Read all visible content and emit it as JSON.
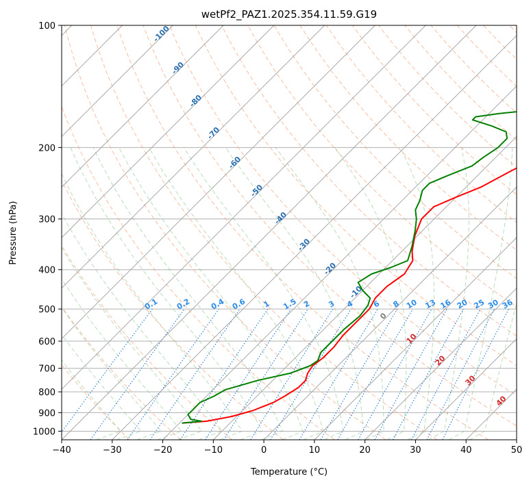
{
  "chart_data": {
    "type": "skewt",
    "title": "wetPf2_PAZ1.2025.354.11.59.G19",
    "xlabel": "Temperature (°C)",
    "ylabel": "Pressure (hPa)",
    "xlim": [
      -40,
      50
    ],
    "ylim": [
      1050,
      100
    ],
    "skew_deg": 45,
    "x_ticks": [
      {
        "value": -40,
        "label": "−40"
      },
      {
        "value": -30,
        "label": "−30"
      },
      {
        "value": -20,
        "label": "−20"
      },
      {
        "value": -10,
        "label": "−10"
      },
      {
        "value": 0,
        "label": "0"
      },
      {
        "value": 10,
        "label": "10"
      },
      {
        "value": 20,
        "label": "20"
      },
      {
        "value": 30,
        "label": "30"
      },
      {
        "value": 40,
        "label": "40"
      },
      {
        "value": 50,
        "label": "50"
      }
    ],
    "y_ticks": [
      {
        "value": 100,
        "label": "100"
      },
      {
        "value": 200,
        "label": "200"
      },
      {
        "value": 300,
        "label": "300"
      },
      {
        "value": 400,
        "label": "400"
      },
      {
        "value": 500,
        "label": "500"
      },
      {
        "value": 600,
        "label": "600"
      },
      {
        "value": 700,
        "label": "700"
      },
      {
        "value": 800,
        "label": "800"
      },
      {
        "value": 900,
        "label": "900"
      },
      {
        "value": 1000,
        "label": "1000"
      }
    ],
    "isotherm_labels": [
      {
        "t": -100,
        "label": "-100"
      },
      {
        "t": -90,
        "label": "-90"
      },
      {
        "t": -80,
        "label": "-80"
      },
      {
        "t": -70,
        "label": "-70"
      },
      {
        "t": -60,
        "label": "-60"
      },
      {
        "t": -50,
        "label": "-50"
      },
      {
        "t": -40,
        "label": "-40"
      },
      {
        "t": -30,
        "label": "-30"
      },
      {
        "t": -20,
        "label": "-20"
      },
      {
        "t": -10,
        "label": "-10"
      },
      {
        "t": 0,
        "label": "0"
      },
      {
        "t": 10,
        "label": "10"
      },
      {
        "t": 20,
        "label": "20"
      },
      {
        "t": 30,
        "label": "30"
      },
      {
        "t": 40,
        "label": "40"
      }
    ],
    "mixing_ratio_labels": [
      "0.1",
      "0.2",
      "0.4",
      "0.6",
      "1",
      "1.5",
      "2",
      "3",
      "4",
      "6",
      "8",
      "10",
      "13",
      "16",
      "20",
      "25",
      "30",
      "36"
    ],
    "series": [
      {
        "name": "Temperature",
        "color": "#ff0000",
        "points": [
          {
            "p": 955,
            "t": -19.5
          },
          {
            "p": 945,
            "t": -15
          },
          {
            "p": 920,
            "t": -11
          },
          {
            "p": 890,
            "t": -8
          },
          {
            "p": 850,
            "t": -5.5
          },
          {
            "p": 820,
            "t": -4.5
          },
          {
            "p": 780,
            "t": -3.5
          },
          {
            "p": 750,
            "t": -3.5
          },
          {
            "p": 720,
            "t": -4.5
          },
          {
            "p": 690,
            "t": -5
          },
          {
            "p": 660,
            "t": -4.5
          },
          {
            "p": 620,
            "t": -4.5
          },
          {
            "p": 580,
            "t": -5
          },
          {
            "p": 540,
            "t": -5
          },
          {
            "p": 500,
            "t": -5
          },
          {
            "p": 470,
            "t": -6
          },
          {
            "p": 440,
            "t": -6
          },
          {
            "p": 410,
            "t": -5
          },
          {
            "p": 380,
            "t": -6
          },
          {
            "p": 360,
            "t": -8
          },
          {
            "p": 330,
            "t": -10.5
          },
          {
            "p": 300,
            "t": -12.5
          },
          {
            "p": 280,
            "t": -12.5
          },
          {
            "p": 265,
            "t": -10
          },
          {
            "p": 250,
            "t": -7
          },
          {
            "p": 230,
            "t": -4.5
          },
          {
            "p": 210,
            "t": -1.5
          },
          {
            "p": 195,
            "t": 1
          },
          {
            "p": 180,
            "t": 2.5
          },
          {
            "p": 170,
            "t": 3.5
          },
          {
            "p": 160,
            "t": 4
          },
          {
            "p": 150,
            "t": 5
          },
          {
            "p": 140,
            "t": 8
          },
          {
            "p": 125,
            "t": 12
          },
          {
            "p": 110,
            "t": 15
          },
          {
            "p": 100,
            "t": 16
          }
        ]
      },
      {
        "name": "Dewpoint",
        "color": "#008000",
        "points": [
          {
            "p": 955,
            "t": -19.5
          },
          {
            "p": 945,
            "t": -16
          },
          {
            "p": 935,
            "t": -18.5
          },
          {
            "p": 910,
            "t": -20
          },
          {
            "p": 880,
            "t": -20
          },
          {
            "p": 850,
            "t": -20
          },
          {
            "p": 820,
            "t": -18.5
          },
          {
            "p": 790,
            "t": -17.5
          },
          {
            "p": 750,
            "t": -13
          },
          {
            "p": 720,
            "t": -8
          },
          {
            "p": 690,
            "t": -5.5
          },
          {
            "p": 670,
            "t": -5
          },
          {
            "p": 640,
            "t": -6
          },
          {
            "p": 600,
            "t": -6
          },
          {
            "p": 560,
            "t": -6
          },
          {
            "p": 520,
            "t": -5.5
          },
          {
            "p": 490,
            "t": -6
          },
          {
            "p": 470,
            "t": -7
          },
          {
            "p": 450,
            "t": -10
          },
          {
            "p": 430,
            "t": -12.5
          },
          {
            "p": 410,
            "t": -11.5
          },
          {
            "p": 395,
            "t": -9
          },
          {
            "p": 380,
            "t": -7
          },
          {
            "p": 350,
            "t": -9
          },
          {
            "p": 320,
            "t": -11.5
          },
          {
            "p": 300,
            "t": -13.5
          },
          {
            "p": 285,
            "t": -15.5
          },
          {
            "p": 270,
            "t": -16.5
          },
          {
            "p": 255,
            "t": -18
          },
          {
            "p": 245,
            "t": -18
          },
          {
            "p": 235,
            "t": -16
          },
          {
            "p": 222,
            "t": -13
          },
          {
            "p": 212,
            "t": -12.5
          },
          {
            "p": 200,
            "t": -11.5
          },
          {
            "p": 190,
            "t": -11.5
          },
          {
            "p": 183,
            "t": -13
          },
          {
            "p": 177,
            "t": -17
          },
          {
            "p": 171,
            "t": -22
          },
          {
            "p": 168,
            "t": -22
          },
          {
            "p": 165,
            "t": -18
          },
          {
            "p": 160,
            "t": -9
          },
          {
            "p": 152,
            "t": -5.5
          },
          {
            "p": 145,
            "t": -4
          },
          {
            "p": 140,
            "t": -3.5
          },
          {
            "p": 130,
            "t": -6.5
          },
          {
            "p": 124,
            "t": -8
          },
          {
            "p": 118,
            "t": -6.5
          },
          {
            "p": 112,
            "t": -3.5
          },
          {
            "p": 106,
            "t": -1
          },
          {
            "p": 100,
            "t": 2
          }
        ]
      }
    ]
  }
}
